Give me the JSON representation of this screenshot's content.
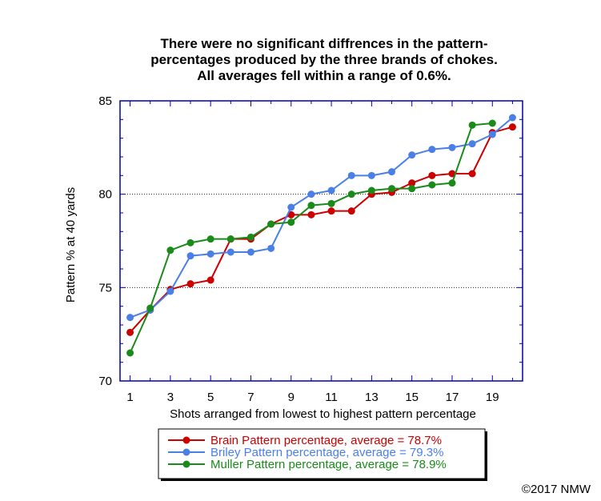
{
  "chart_data": {
    "type": "line",
    "title_lines": [
      "There were no significant diffrences in the pattern-",
      "percentages produced by the three brands of chokes.",
      "All averages fell within a range of 0.6%."
    ],
    "xlabel": "Shots arranged from lowest to highest pattern percentage",
    "ylabel": "Pattern % at 40 yards",
    "xlim": [
      0.5,
      20.5
    ],
    "ylim": [
      70,
      85
    ],
    "x_ticks": [
      1,
      3,
      5,
      7,
      9,
      11,
      13,
      15,
      17,
      19
    ],
    "y_ticks": [
      70,
      75,
      80,
      85
    ],
    "gridlines_y": [
      75,
      80
    ],
    "grid": "dotted horizontal at 75 and 80",
    "legend_position": "bottom-center, below plot",
    "x": [
      1,
      2,
      3,
      4,
      5,
      6,
      7,
      8,
      9,
      10,
      11,
      12,
      13,
      14,
      15,
      16,
      17,
      18,
      19,
      20
    ],
    "series": [
      {
        "name": "Brain Pattern percentage, average = 78.7%",
        "color": "#cc0000",
        "values": [
          72.6,
          73.8,
          74.9,
          75.2,
          75.4,
          77.6,
          77.6,
          78.4,
          78.9,
          78.9,
          79.1,
          79.1,
          80.0,
          80.1,
          80.6,
          81.0,
          81.1,
          81.1,
          83.3,
          83.6
        ]
      },
      {
        "name": "Briley Pattern percentage, average = 79.3%",
        "color": "#4a7fe6",
        "values": [
          73.4,
          73.8,
          74.8,
          76.7,
          76.8,
          76.9,
          76.9,
          77.1,
          79.3,
          80.0,
          80.2,
          81.0,
          81.0,
          81.2,
          82.1,
          82.4,
          82.5,
          82.7,
          83.2,
          84.1
        ]
      },
      {
        "name": "Muller Pattern percentage, average = 78.9%",
        "color": "#1a8a1a",
        "values": [
          71.5,
          73.9,
          77.0,
          77.4,
          77.6,
          77.6,
          77.7,
          78.4,
          78.5,
          79.4,
          79.5,
          80.0,
          80.2,
          80.3,
          80.3,
          80.5,
          80.6,
          83.7,
          83.8,
          null
        ]
      }
    ]
  },
  "credit": "©2017 NMW"
}
